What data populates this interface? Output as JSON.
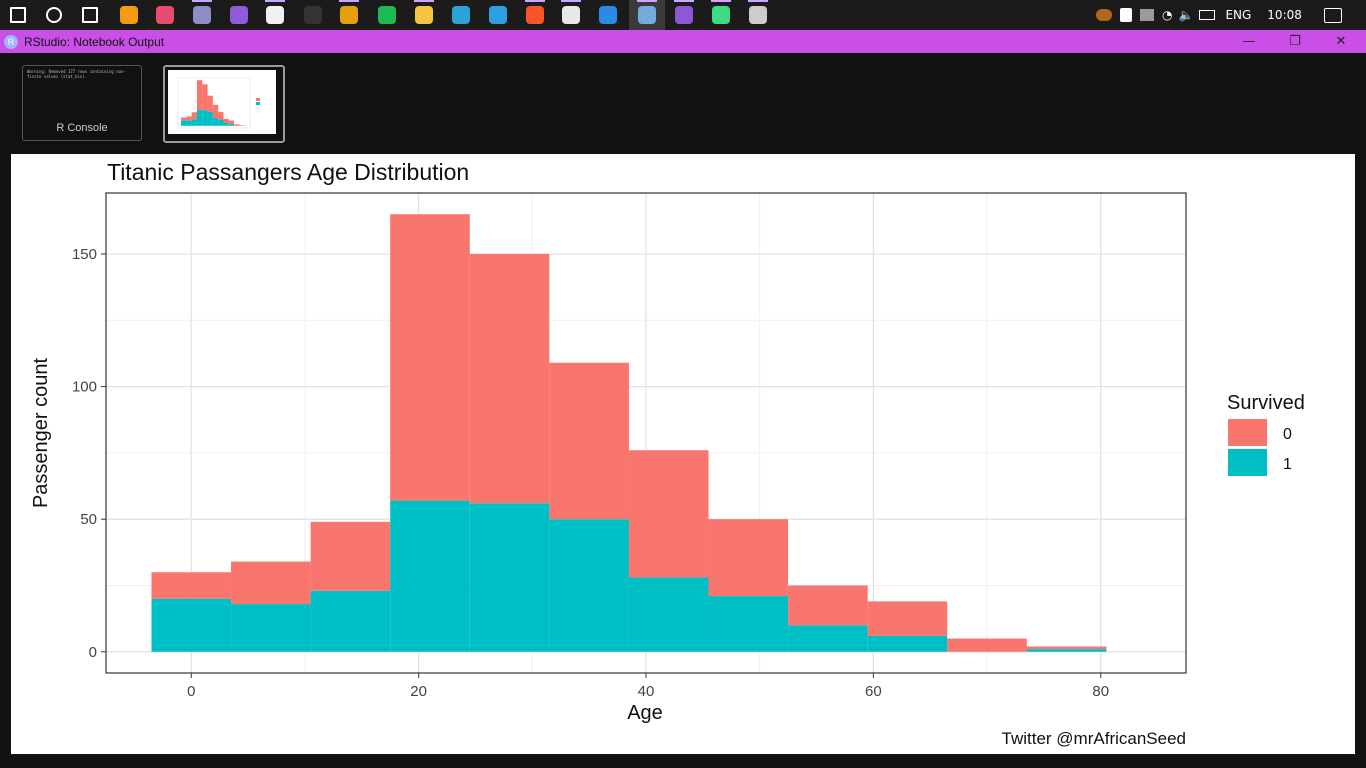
{
  "taskbar": {
    "apps": [
      {
        "name": "windows-start-icon",
        "color": "#ffffff"
      },
      {
        "name": "search-icon",
        "color": "#ffffff"
      },
      {
        "name": "task-view-icon",
        "color": "#ffffff"
      },
      {
        "name": "magnifier-app-icon",
        "color": "#f39c12"
      },
      {
        "name": "media-app-icon",
        "color": "#e74c6c"
      },
      {
        "name": "dock-app-icon",
        "color": "#8e8ec7"
      },
      {
        "name": "visual-studio-icon",
        "color": "#8f5bd6"
      },
      {
        "name": "emoji-app-icon",
        "color": "#f1f1f1"
      },
      {
        "name": "terminal-app-icon",
        "color": "#333333"
      },
      {
        "name": "plex-app-icon",
        "color": "#e5a00d"
      },
      {
        "name": "spotify-icon",
        "color": "#1db954"
      },
      {
        "name": "file-explorer-icon",
        "color": "#f6c343"
      },
      {
        "name": "upwork-app-icon",
        "color": "#29a3d8"
      },
      {
        "name": "edge-browser-icon",
        "color": "#2e9ee0"
      },
      {
        "name": "brave-browser-icon",
        "color": "#fb542b"
      },
      {
        "name": "slack-icon",
        "color": "#e8e8e8"
      },
      {
        "name": "vscode-icon",
        "color": "#2a8ae6"
      },
      {
        "name": "rstudio-icon",
        "color": "#75aadb"
      },
      {
        "name": "github-desktop-icon",
        "color": "#8e57d8"
      },
      {
        "name": "android-studio-icon",
        "color": "#3ddc84"
      },
      {
        "name": "cmd-icon",
        "color": "#cccccc"
      }
    ],
    "language": "ENG",
    "time": "10:08"
  },
  "window": {
    "title": "RStudio: Notebook Output",
    "controls": {
      "minimize": "—",
      "maximize": "❐",
      "close": "✕"
    }
  },
  "thumbnails": {
    "console_label": "R Console",
    "console_text": "Warning: Removed 177 rows containing non-finite values (stat_bin)."
  },
  "chart_data": {
    "type": "bar",
    "title": "Titanic Passangers Age Distribution",
    "xlabel": "Age",
    "ylabel": "Passenger count",
    "caption": "Twitter @mrAfricanSeed",
    "xlim": [
      -7.5,
      87.5
    ],
    "ylim": [
      -8,
      173
    ],
    "x_ticks": [
      0,
      20,
      40,
      60,
      80
    ],
    "y_ticks": [
      0,
      50,
      100,
      150
    ],
    "bins": [
      {
        "start": -3.5,
        "end": 3.5
      },
      {
        "start": 3.5,
        "end": 10.5
      },
      {
        "start": 10.5,
        "end": 17.5
      },
      {
        "start": 17.5,
        "end": 24.5
      },
      {
        "start": 24.5,
        "end": 31.5
      },
      {
        "start": 31.5,
        "end": 38.5
      },
      {
        "start": 38.5,
        "end": 45.5
      },
      {
        "start": 45.5,
        "end": 52.5
      },
      {
        "start": 52.5,
        "end": 59.5
      },
      {
        "start": 59.5,
        "end": 66.5
      },
      {
        "start": 66.5,
        "end": 73.5
      },
      {
        "start": 73.5,
        "end": 80.5
      }
    ],
    "series": [
      {
        "name": "0",
        "color": "#f8766d",
        "values": [
          10,
          16,
          26,
          108,
          94,
          59,
          48,
          29,
          15,
          13,
          5,
          1
        ]
      },
      {
        "name": "1",
        "color": "#00bfc4",
        "values": [
          20,
          18,
          23,
          57,
          56,
          50,
          28,
          21,
          10,
          6,
          0,
          1
        ]
      }
    ],
    "legend": {
      "title": "Survived",
      "position": "right"
    },
    "grid": true
  }
}
